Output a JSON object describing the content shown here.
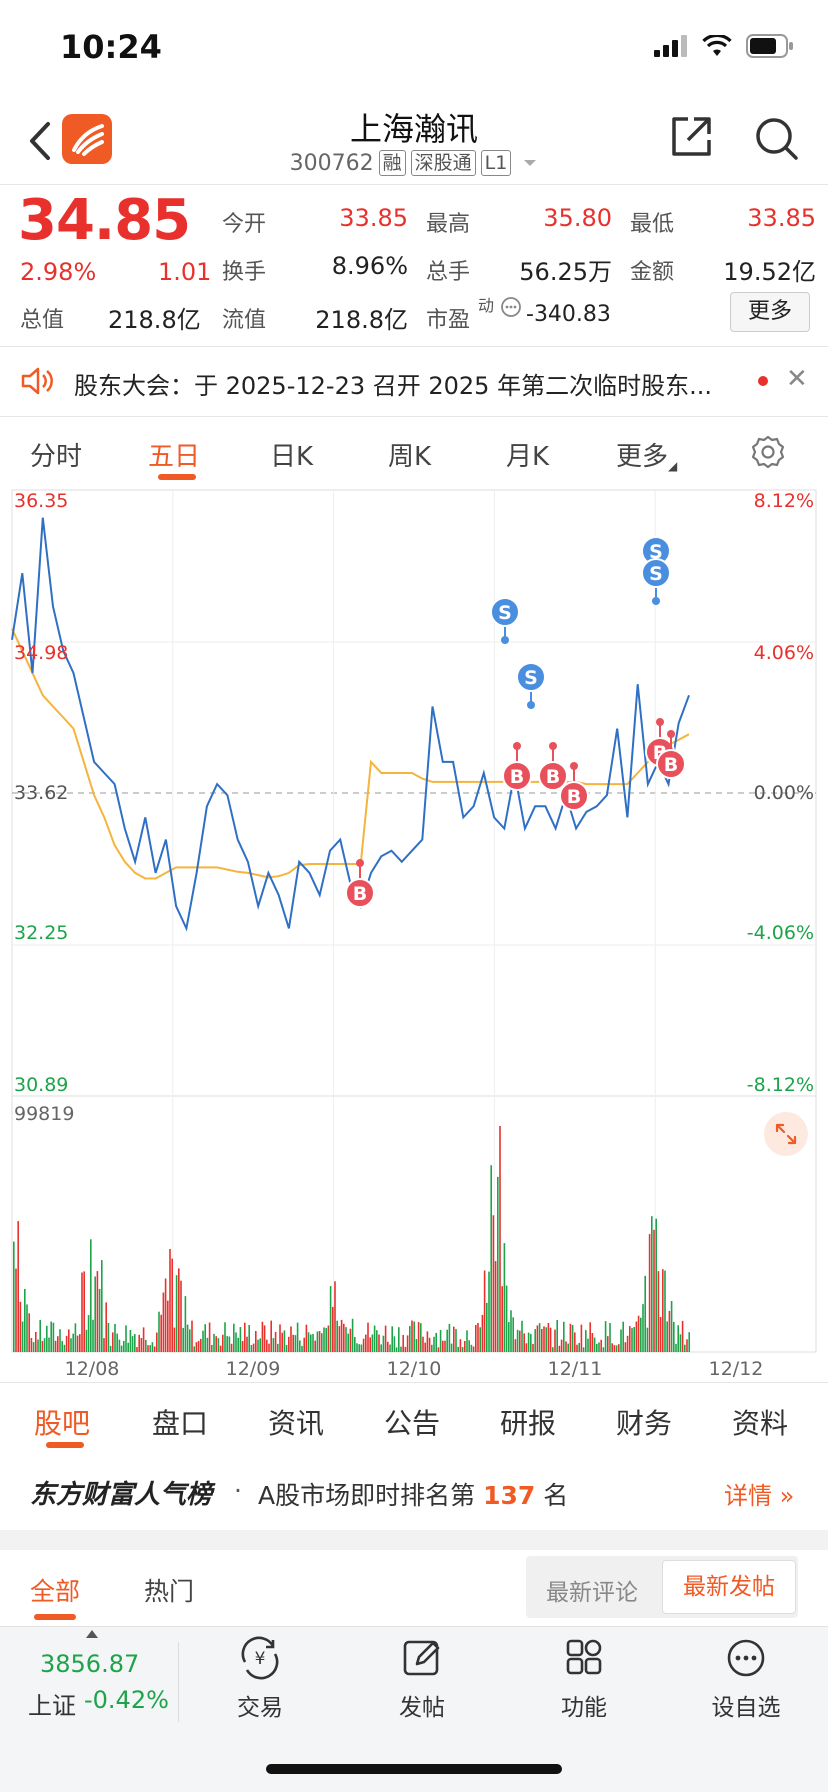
{
  "status_bar": {
    "time": "10:24"
  },
  "header": {
    "stock_name": "上海瀚讯",
    "stock_code": "300762",
    "tags": [
      "融",
      "深股通",
      "L1"
    ]
  },
  "quote": {
    "price": "34.85",
    "change_pct": "2.98%",
    "change": "1.01",
    "market_cap_label": "总值",
    "market_cap": "218.8亿",
    "fields": [
      {
        "label": "今开",
        "value": "33.85",
        "color": "red"
      },
      {
        "label": "最高",
        "value": "35.80",
        "color": "red"
      },
      {
        "label": "最低",
        "value": "33.85",
        "color": "red"
      },
      {
        "label": "换手",
        "value": "8.96%",
        "color": "black"
      },
      {
        "label": "总手",
        "value": "56.25万",
        "color": "black"
      },
      {
        "label": "金额",
        "value": "19.52亿",
        "color": "black"
      },
      {
        "label": "流值",
        "value": "218.8亿",
        "color": "black"
      },
      {
        "label": "市盈",
        "value": "-340.83",
        "color": "black"
      }
    ],
    "pe_superscript": "动",
    "more_label": "更多"
  },
  "notice": {
    "text": "股东大会：于 2025-12-23 召开 2025 年第二次临时股东..."
  },
  "chart_tabs": [
    "分时",
    "五日",
    "日K",
    "周K",
    "月K",
    "更多"
  ],
  "chart_tabs_active": 1,
  "chart_data": {
    "type": "line",
    "title": "",
    "x_labels": [
      "12/08",
      "12/09",
      "12/10",
      "12/11",
      "12/12"
    ],
    "price_axis": [
      "36.35",
      "34.98",
      "33.62",
      "32.25",
      "30.89"
    ],
    "pct_axis": [
      "8.12%",
      "4.06%",
      "0.00%",
      "-4.06%",
      "-8.12%"
    ],
    "ylim": [
      30.89,
      36.35
    ],
    "prev_close": 33.62,
    "volume_axis_max": "99819",
    "series": [
      {
        "values": [
          35.0,
          35.6,
          34.7,
          36.1,
          35.3,
          34.9,
          34.7,
          34.3,
          33.9,
          33.8,
          33.7,
          33.3,
          33.0,
          33.4,
          32.9,
          33.2,
          32.6,
          32.4,
          32.9,
          33.5,
          33.7,
          33.6,
          33.2,
          33.0,
          32.6,
          32.9,
          32.7,
          32.4,
          33.0,
          32.9,
          32.7,
          33.1,
          33.2,
          32.8,
          32.6,
          32.9,
          33.05,
          33.1,
          33.0,
          33.1,
          33.2,
          34.4,
          33.9,
          33.9,
          33.4,
          33.5,
          33.8,
          33.4,
          33.3,
          33.8,
          33.3,
          33.5,
          33.5,
          33.3,
          33.6,
          33.3,
          33.45,
          33.5,
          33.6,
          34.2,
          33.4,
          34.6,
          33.7,
          33.9,
          33.7,
          34.25,
          34.5
        ]
      },
      {
        "values": [
          35.1,
          34.9,
          34.7,
          34.5,
          34.4,
          34.3,
          34.2,
          33.9,
          33.6,
          33.4,
          33.15,
          33.0,
          32.9,
          32.85,
          32.85,
          32.9,
          32.95,
          32.95,
          32.95,
          32.95,
          32.95,
          32.93,
          32.91,
          32.9,
          32.88,
          32.86,
          32.87,
          32.9,
          32.97,
          32.98,
          32.98,
          32.98,
          32.98,
          32.98,
          32.98,
          33.9,
          33.8,
          33.8,
          33.8,
          33.8,
          33.75,
          33.72,
          33.72,
          33.72,
          33.72,
          33.72,
          33.72,
          33.72,
          33.72,
          33.72,
          33.72,
          33.72,
          33.72,
          33.72,
          33.72,
          33.72,
          33.7,
          33.7,
          33.7,
          33.7,
          33.7,
          33.8,
          33.9,
          34.0,
          34.05,
          34.1,
          34.15
        ]
      }
    ],
    "signals": [
      "S",
      "S",
      "B",
      "B",
      "B",
      "S",
      "S",
      "B",
      "B",
      "B"
    ]
  },
  "content_tabs": [
    "股吧",
    "盘口",
    "资讯",
    "公告",
    "研报",
    "财务",
    "资料"
  ],
  "rank": {
    "brand": "东方财富人气榜",
    "text_prefix": "A股市场即时排名第",
    "rank_number": "137",
    "text_suffix": "名",
    "detail": "详情"
  },
  "feed": {
    "tab_all": "全部",
    "tab_hot": "热门",
    "sort_comment": "最新评论",
    "sort_post": "最新发帖"
  },
  "bottom_nav": {
    "index_value": "3856.87",
    "index_label": "上证",
    "index_pct": "-0.42%",
    "items": [
      "交易",
      "发帖",
      "功能",
      "设自选"
    ]
  },
  "colors": {
    "up": "#e8312c",
    "down": "#1ea34a",
    "accent": "#f05a24",
    "price_line": "#2f6fc4",
    "avg_line": "#f4b43d",
    "sell_marker": "#4a8ee0",
    "buy_marker": "#e8505b"
  }
}
